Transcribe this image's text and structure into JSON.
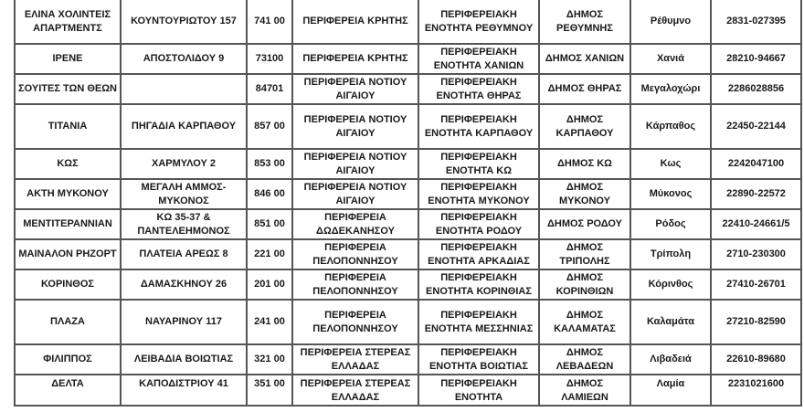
{
  "rows": [
    {
      "name": "ΕΛΙΝΑ ΧΟΛΙΝΤΕΙΣ ΑΠΑΡΤΜΕΝΤΣ",
      "address": "ΚΟΥΝΤΟΥΡΙΩΤΟΥ 157",
      "postal": "741 00",
      "region": "ΠΕΡΙΦΕΡΕΙΑ ΚΡΗΤΗΣ",
      "unit": "ΠΕΡΙΦΕΡΕΙΑΚΗ ΕΝΟΤΗΤΑ ΡΕΘΥΜΝΟΥ",
      "municipality": "ΔΗΜΟΣ ΡΕΘΥΜΝΗΣ",
      "city": "Ρέθυμνο",
      "phone": "2831-027395"
    },
    {
      "name": "ΙΡΕΝΕ",
      "address": "ΑΠΟΣΤΟΛΙΔΟΥ 9",
      "postal": "73100",
      "region": "ΠΕΡΙΦΕΡΕΙΑ ΚΡΗΤΗΣ",
      "unit": "ΠΕΡΙΦΕΡΕΙΑΚΗ ΕΝΟΤΗΤΑ ΧΑΝΙΩΝ",
      "municipality": "ΔΗΜΟΣ ΧΑΝΙΩΝ",
      "city": "Χανιά",
      "phone": "28210-94667"
    },
    {
      "name": "ΣΟΥΙΤΕΣ ΤΩΝ ΘΕΩΝ",
      "address": "",
      "postal": "84701",
      "region": "ΠΕΡΙΦΕΡΕΙΑ ΝΟΤΙΟΥ ΑΙΓΑΙΟΥ",
      "unit": "ΠΕΡΙΦΕΡΕΙΑΚΗ ΕΝΟΤΗΤΑ ΘΗΡΑΣ",
      "municipality": "ΔΗΜΟΣ ΘΗΡΑΣ",
      "city": "Μεγαλοχώρι",
      "phone": "2286028856"
    },
    {
      "name": "ΤΙΤΑΝΙΑ",
      "address": "ΠΗΓΑΔΙΑ ΚΑΡΠΑΘΟΥ",
      "postal": "857 00",
      "region": "ΠΕΡΙΦΕΡΕΙΑ ΝΟΤΙΟΥ ΑΙΓΑΙΟΥ",
      "unit": "ΠΕΡΙΦΕΡΕΙΑΚΗ ΕΝΟΤΗΤΑ ΚΑΡΠΑΘΟΥ",
      "municipality": "ΔΗΜΟΣ ΚΑΡΠΑΘΟΥ",
      "city": "Κάρπαθος",
      "phone": "22450-22144"
    },
    {
      "name": "ΚΩΣ",
      "address": "ΧΑΡΜΥΛΟΥ 2",
      "postal": "853 00",
      "region": "ΠΕΡΙΦΕΡΕΙΑ ΝΟΤΙΟΥ ΑΙΓΑΙΟΥ",
      "unit": "ΠΕΡΙΦΕΡΕΙΑΚΗ ΕΝΟΤΗΤΑ ΚΩ",
      "municipality": "ΔΗΜΟΣ ΚΩ",
      "city": "Κως",
      "phone": "2242047100"
    },
    {
      "name": "ΑΚΤΗ ΜΥΚΟΝΟΥ",
      "address": "ΜΕΓΑΛΗ ΑΜΜΟΣ-ΜΥΚΟΝΟΣ",
      "postal": "846 00",
      "region": "ΠΕΡΙΦΕΡΕΙΑ ΝΟΤΙΟΥ ΑΙΓΑΙΟΥ",
      "unit": "ΠΕΡΙΦΕΡΕΙΑΚΗ ΕΝΟΤΗΤΑ ΜΥΚΟΝΟΥ",
      "municipality": "ΔΗΜΟΣ ΜΥΚΟΝΟΥ",
      "city": "Μύκονος",
      "phone": "22890-22572"
    },
    {
      "name": "ΜΕΝΤΙΤΕΡΑΝΝΙΑΝ",
      "address": "ΚΩ 35-37 & ΠΑΝΤΕΛΕΗΜΟΝΟΣ",
      "postal": "851 00",
      "region": "ΠΕΡΙΦΕΡΕΙΑ ΔΩΔΕΚΑΝΗΣΟΥ",
      "unit": "ΠΕΡΙΦΕΡΕΙΑΚΗ ΕΝΟΤΗΤΑ ΡΟΔΟΥ",
      "municipality": "ΔΗΜΟΣ ΡΟΔΟΥ",
      "city": "Ρόδος",
      "phone": "22410-24661/5"
    },
    {
      "name": "ΜΑΙΝΑΛΟΝ ΡΗΖΟΡΤ",
      "address": "ΠΛΑΤΕΙΑ ΑΡΕΩΣ 8",
      "postal": "221 00",
      "region": "ΠΕΡΙΦΕΡΕΙΑ ΠΕΛΟΠΟΝΝΗΣΟΥ",
      "unit": "ΠΕΡΙΦΕΡΕΙΑΚΗ ΕΝΟΤΗΤΑ ΑΡΚΑΔΙΑΣ",
      "municipality": "ΔΗΜΟΣ ΤΡΙΠΟΛΗΣ",
      "city": "Τρίπολη",
      "phone": "2710-230300"
    },
    {
      "name": "ΚΟΡΙΝΘΟΣ",
      "address": "ΔΑΜΑΣΚΗΝΟΥ 26",
      "postal": "201 00",
      "region": "ΠΕΡΙΦΕΡΕΙΑ ΠΕΛΟΠΟΝΝΗΣΟΥ",
      "unit": "ΠΕΡΙΦΕΡΕΙΑΚΗ ΕΝΟΤΗΤΑ ΚΟΡΙΝΘΙΑΣ",
      "municipality": "ΔΗΜΟΣ ΚΟΡΙΝΘΙΩΝ",
      "city": "Κόρινθος",
      "phone": "27410-26701"
    },
    {
      "name": "ΠΛΑΖΑ",
      "address": "ΝΑΥΑΡΙΝΟΥ 117",
      "postal": "241 00",
      "region": "ΠΕΡΙΦΕΡΕΙΑ ΠΕΛΟΠΟΝΝΗΣΟΥ",
      "unit": "ΠΕΡΙΦΕΡΕΙΑΚΗ ΕΝΟΤΗΤΑ ΜΕΣΣΗΝΙΑΣ",
      "municipality": "ΔΗΜΟΣ ΚΑΛΑΜΑΤΑΣ",
      "city": "Καλαμάτα",
      "phone": "27210-82590"
    },
    {
      "name": "ΦΙΛΙΠΠΟΣ",
      "address": "ΛΕΙΒΑΔΙΑ ΒΟΙΩΤΙΑΣ",
      "postal": "321 00",
      "region": "ΠΕΡΙΦΕΡΕΙΑ ΣΤΕΡΕΑΣ ΕΛΛΑΔΑΣ",
      "unit": "ΠΕΡΙΦΕΡΕΙΑΚΗ ΕΝΟΤΗΤΑ ΒΟΙΩΤΙΑΣ",
      "municipality": "ΔΗΜΟΣ ΛΕΒΑΔΕΩΝ",
      "city": "Λιβαδειά",
      "phone": "22610-89680"
    },
    {
      "name": "ΔΕΛΤΑ",
      "address": "ΚΑΠΟΔΙΣΤΡΙΟΥ 41",
      "postal": "351 00",
      "region": "ΠΕΡΙΦΕΡΕΙΑ ΣΤΕΡΕΑΣ ΕΛΛΑΔΑΣ",
      "unit": "ΠΕΡΙΦΕΡΕΙΑΚΗ ΕΝΟΤΗΤΑ",
      "municipality": "ΔΗΜΟΣ ΛΑΜΙΕΩΝ",
      "city": "Λαμία",
      "phone": "2231021600"
    }
  ]
}
